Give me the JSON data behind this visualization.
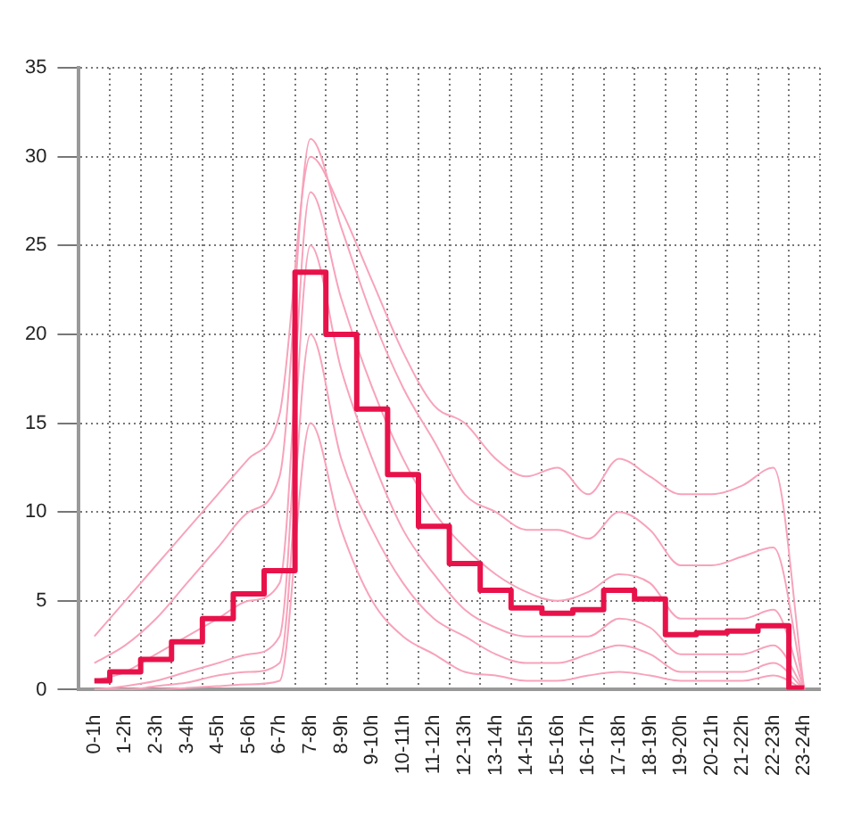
{
  "chart_data": {
    "type": "line",
    "categories": [
      "0-1h",
      "1-2h",
      "2-3h",
      "3-4h",
      "4-5h",
      "5-6h",
      "6-7h",
      "7-8h",
      "8-9h",
      "9-10h",
      "10-11h",
      "11-12h",
      "12-13h",
      "13-14h",
      "14-15h",
      "15-16h",
      "16-17h",
      "17-18h",
      "18-19h",
      "19-20h",
      "20-21h",
      "21-22h",
      "22-23h",
      "23-24h"
    ],
    "ylim": [
      0,
      35
    ],
    "yticks": [
      0,
      5,
      10,
      15,
      20,
      25,
      30,
      35
    ],
    "grid": true,
    "line_style": "solid",
    "marker": "none",
    "series": [
      {
        "color": "#f7a3bb",
        "values": [
          3,
          5,
          7,
          9,
          11,
          13,
          15.5,
          30,
          27,
          23,
          19,
          16,
          15,
          13,
          12,
          12.5,
          11,
          13,
          12,
          11,
          11,
          11.5,
          12.5,
          0
        ]
      },
      {
        "color": "#f7a3bb",
        "values": [
          1.5,
          2.5,
          4,
          6,
          8,
          10,
          12,
          31,
          26,
          21,
          17,
          14,
          11,
          10,
          9,
          9,
          8.5,
          10,
          9,
          7,
          7,
          7.5,
          8,
          0
        ]
      },
      {
        "color": "#f7a3bb",
        "values": [
          0.5,
          1,
          2,
          3,
          4,
          5,
          6,
          28,
          22,
          17,
          13,
          10,
          8,
          6.5,
          5.5,
          5,
          5.5,
          6.5,
          6,
          4,
          4,
          4,
          4.5,
          0
        ]
      },
      {
        "color": "#f7a3bb",
        "values": [
          0,
          0.2,
          0.5,
          1,
          1.5,
          2,
          3,
          25,
          18,
          13,
          9,
          6.5,
          4.5,
          3.5,
          3,
          3,
          3,
          4,
          3.5,
          2,
          2,
          2,
          2.5,
          0
        ]
      },
      {
        "color": "#f7a3bb",
        "values": [
          0,
          0,
          0.2,
          0.4,
          0.8,
          1,
          1.5,
          20,
          13,
          9,
          6,
          4,
          3,
          2,
          1.5,
          1.5,
          2,
          2.5,
          2,
          1,
          1,
          1,
          1.5,
          0
        ]
      },
      {
        "color": "#f7a3bb",
        "values": [
          0,
          0,
          0,
          0.1,
          0.2,
          0.3,
          0.5,
          15,
          9,
          5,
          3,
          2,
          1,
          0.8,
          0.5,
          0.5,
          0.8,
          1,
          0.8,
          0.5,
          0.5,
          0.5,
          0.8,
          0
        ]
      },
      {
        "type": "step",
        "color": "#e8124a",
        "values": [
          0.5,
          1.0,
          1.7,
          2.7,
          4.0,
          5.4,
          6.7,
          23.5,
          20.0,
          15.8,
          12.1,
          9.2,
          7.1,
          5.6,
          4.6,
          4.3,
          4.5,
          5.6,
          5.1,
          3.1,
          3.2,
          3.3,
          3.6,
          0.1
        ]
      }
    ]
  }
}
